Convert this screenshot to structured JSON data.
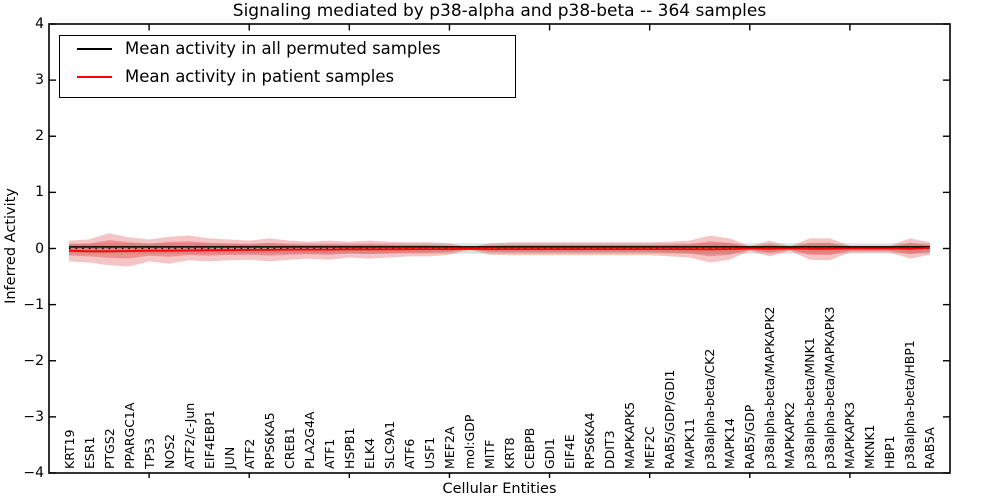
{
  "title": "Signaling mediated by p38-alpha and p38-beta -- 364 samples",
  "chart_data": {
    "type": "line",
    "title": "Signaling mediated by p38-alpha and p38-beta -- 364 samples",
    "xlabel": "Cellular Entities",
    "ylabel": "Inferred Activity",
    "ylim": [
      -4,
      4
    ],
    "ytick_labels": [
      "4",
      "3",
      "2",
      "1",
      "0",
      "−1",
      "−2",
      "−3",
      "−4"
    ],
    "ytick_values": [
      4,
      3,
      2,
      1,
      0,
      -1,
      -2,
      -3,
      -4
    ],
    "xtick_values": [
      5,
      10,
      15,
      20,
      25,
      30,
      35,
      40
    ],
    "grid": false,
    "legend_position": "upper left",
    "categories": [
      "KRT19",
      "ESR1",
      "PTGS2",
      "PPARGC1A",
      "TP53",
      "NOS2",
      "ATF2/c-Jun",
      "EIF4EBP1",
      "JUN",
      "ATF2",
      "RPS6KA5",
      "CREB1",
      "PLA2G4A",
      "ATF1",
      "HSPB1",
      "ELK4",
      "SLC9A1",
      "ATF6",
      "USF1",
      "MEF2A",
      "mol:GDP",
      "MITF",
      "KRT8",
      "CEBPB",
      "GDI1",
      "EIF4E",
      "RPS6KA4",
      "DDIT3",
      "MAPKAPK5",
      "MEF2C",
      "RAB5/GDP/GDI1",
      "MAPK11",
      "p38alpha-beta/CK2",
      "MAPK14",
      "RAB5/GDP",
      "p38alpha-beta/MAPKAPK2",
      "MAPKAPK2",
      "p38alpha-beta/MNK1",
      "p38alpha-beta/MAPKAPK3",
      "MAPKAPK3",
      "MKNK1",
      "HBP1",
      "p38alpha-beta/HBP1",
      "RAB5A"
    ],
    "series": [
      {
        "name": "Mean activity in all permuted samples",
        "color": "#000000",
        "style": "solid",
        "constant_value": 0.03
      },
      {
        "name": "Mean activity in patient samples",
        "color": "#ff0000",
        "style": "solid",
        "values": [
          -0.04,
          -0.05,
          -0.05,
          -0.045,
          -0.04,
          -0.04,
          -0.035,
          -0.03,
          -0.03,
          -0.025,
          -0.025,
          -0.02,
          -0.02,
          -0.02,
          -0.015,
          -0.015,
          -0.015,
          -0.012,
          -0.01,
          -0.01,
          -0.005,
          -0.01,
          -0.01,
          -0.01,
          -0.01,
          -0.01,
          -0.01,
          -0.01,
          -0.01,
          -0.01,
          -0.01,
          -0.012,
          -0.015,
          -0.01,
          0,
          -0.005,
          0,
          -0.008,
          -0.008,
          0,
          0,
          0,
          -0.005,
          0.01
        ]
      }
    ],
    "zero_line": {
      "value": 0,
      "style": "dotted",
      "color": "#000000"
    },
    "bands": {
      "patient_outer_upper": [
        0.14,
        0.16,
        0.27,
        0.2,
        0.16,
        0.21,
        0.23,
        0.18,
        0.16,
        0.14,
        0.18,
        0.14,
        0.12,
        0.14,
        0.12,
        0.14,
        0.12,
        0.11,
        0.11,
        0.09,
        0.02,
        0.09,
        0.11,
        0.11,
        0.11,
        0.11,
        0.11,
        0.11,
        0.11,
        0.11,
        0.12,
        0.14,
        0.23,
        0.18,
        0.04,
        0.14,
        0.04,
        0.18,
        0.18,
        0.05,
        0.05,
        0.05,
        0.18,
        0.11
      ],
      "patient_outer_lower": [
        0.23,
        0.25,
        0.3,
        0.32,
        0.23,
        0.27,
        0.21,
        0.23,
        0.21,
        0.2,
        0.23,
        0.2,
        0.18,
        0.2,
        0.16,
        0.18,
        0.16,
        0.14,
        0.14,
        0.11,
        0.02,
        0.11,
        0.12,
        0.12,
        0.12,
        0.12,
        0.12,
        0.12,
        0.12,
        0.12,
        0.14,
        0.16,
        0.25,
        0.2,
        0.04,
        0.14,
        0.04,
        0.2,
        0.21,
        0.07,
        0.07,
        0.07,
        0.18,
        0.11
      ],
      "inner_scale": 0.55,
      "fill_color": "#de3c3c",
      "outer_alpha": 0.3,
      "inner_alpha": 0.38,
      "permuted_halfwidth": 0.09,
      "permuted_color": "#808080",
      "permuted_alpha": 0.25
    },
    "legend": {
      "entries": [
        {
          "label": "Mean activity in all permuted samples",
          "color": "#000000"
        },
        {
          "label": "Mean activity in patient samples",
          "color": "#ff0000"
        }
      ]
    }
  }
}
